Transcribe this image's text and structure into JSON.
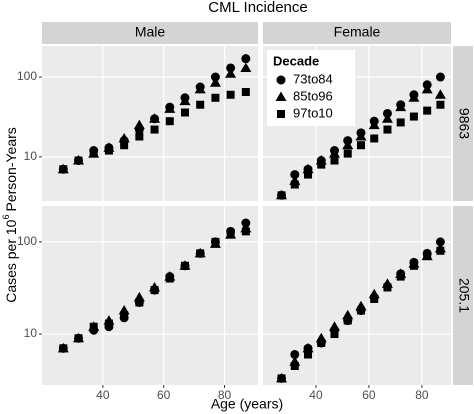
{
  "chart_data": {
    "type": "scatter",
    "title": "CML Incidence",
    "x_label": "Age (years)",
    "y_label": {
      "text": "Cases per 10",
      "sup": "6",
      "rest": "Person-Years"
    },
    "log_y": true,
    "grid": true,
    "legend_title": "Decade",
    "legend_position": "top-left",
    "series": [
      {
        "name": "73to84",
        "shape": "circle",
        "color": "#000000"
      },
      {
        "name": "85to96",
        "shape": "triangle",
        "color": "#000000"
      },
      {
        "name": "97to10",
        "shape": "square",
        "color": "#000000"
      }
    ],
    "columns": [
      "Male",
      "Female"
    ],
    "x": [
      27,
      32,
      37,
      42,
      47,
      52,
      57,
      62,
      67,
      72,
      77,
      82,
      87
    ],
    "xlim": [
      20,
      91
    ],
    "xticks": [
      40,
      60,
      80
    ],
    "rows": [
      {
        "label": "9863",
        "ylim": [
          2.8,
          245
        ],
        "yticks": [
          10,
          100
        ],
        "panels": [
          {
            "values": [
              [
                7,
                9,
                12,
                13,
                16,
                22,
                30,
                42,
                55,
                75,
                100,
                130,
                170
              ],
              [
                7,
                9,
                11,
                13,
                17,
                25,
                30,
                40,
                50,
                70,
                85,
                110,
                130
              ],
              [
                7,
                9,
                11,
                12,
                14,
                18,
                22,
                28,
                36,
                45,
                55,
                60,
                65
              ]
            ]
          },
          {
            "values": [
              [
                3.3,
                6,
                7,
                9,
                12,
                16,
                20,
                28,
                35,
                45,
                60,
                80,
                100
              ],
              [
                3.3,
                5,
                7,
                9,
                11,
                14,
                18,
                25,
                30,
                42,
                55,
                70,
                60
              ],
              [
                3.3,
                4.5,
                6,
                8,
                9,
                11,
                14,
                17,
                22,
                27,
                32,
                38,
                45
              ]
            ]
          }
        ]
      },
      {
        "label": "205.1",
        "ylim": [
          2.8,
          245
        ],
        "yticks": [
          10,
          100
        ],
        "panels": [
          {
            "values": [
              [
                7,
                9,
                11,
                12,
                15,
                22,
                30,
                42,
                55,
                75,
                100,
                130,
                160
              ],
              [
                7,
                9,
                12,
                14,
                18,
                25,
                32,
                42,
                55,
                75,
                95,
                120,
                140
              ],
              [
                7,
                9,
                12,
                13,
                16,
                22,
                30,
                40,
                55,
                75,
                100,
                120,
                130
              ]
            ]
          },
          {
            "values": [
              [
                3.3,
                6,
                7,
                8,
                11,
                14,
                18,
                25,
                33,
                45,
                60,
                75,
                100
              ],
              [
                3.3,
                5,
                7,
                9,
                12,
                16,
                20,
                27,
                35,
                45,
                58,
                70,
                85
              ],
              [
                3.3,
                4.5,
                6,
                8,
                10,
                14,
                18,
                24,
                32,
                42,
                55,
                70,
                80
              ]
            ]
          }
        ]
      }
    ]
  }
}
